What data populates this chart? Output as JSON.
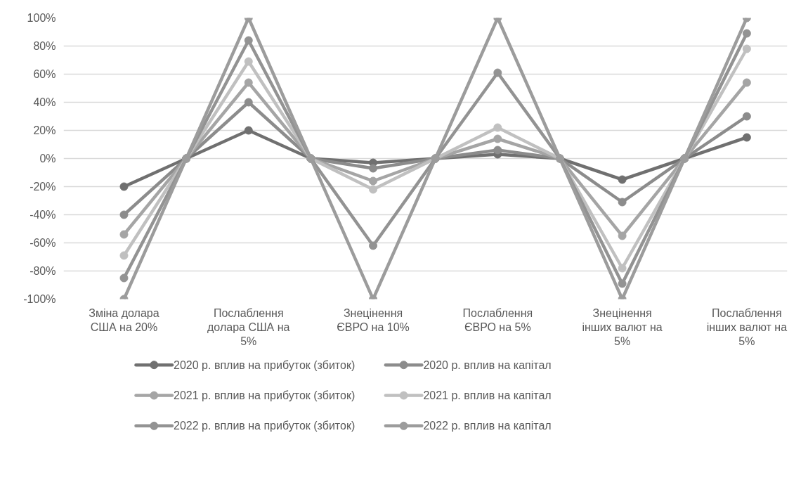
{
  "chart_data": {
    "type": "line",
    "categories": [
      "Зміна долара США на 20%",
      null,
      "Послаблення долара США на 5%",
      null,
      "Знецінення ЄВРО на 10%",
      null,
      "Послаблення ЄВРО на 5%",
      null,
      "Знецінення інших валют на 5%",
      null,
      "Послаблення інших валют на 5%"
    ],
    "series": [
      {
        "name": "2020 р. вплив на прибуток (збиток)",
        "color": "#707070",
        "values": [
          -20,
          0,
          20,
          0,
          -3,
          0,
          3,
          0,
          -15,
          0,
          15
        ]
      },
      {
        "name": "2020 р. вплив на капітал",
        "color": "#8c8c8c",
        "values": [
          -40,
          0,
          40,
          0,
          -7,
          0,
          6,
          0,
          -31,
          0,
          30
        ]
      },
      {
        "name": "2021 р. вплив на прибуток (збиток)",
        "color": "#a5a5a5",
        "values": [
          -54,
          0,
          54,
          0,
          -16,
          0,
          14,
          0,
          -55,
          0,
          54
        ]
      },
      {
        "name": "2021 р. вплив на капітал",
        "color": "#c0c0c0",
        "values": [
          -69,
          0,
          69,
          0,
          -22,
          0,
          22,
          0,
          -78,
          0,
          78
        ]
      },
      {
        "name": "2022 р. вплив на прибуток (збиток)",
        "color": "#939393",
        "values": [
          -85,
          0,
          84,
          0,
          -62,
          0,
          61,
          0,
          -89,
          0,
          89
        ]
      },
      {
        "name": "2022 р. вплив на капітал",
        "color": "#9c9c9c",
        "values": [
          -100,
          0,
          100,
          0,
          -100,
          0,
          100,
          0,
          -100,
          0,
          100
        ]
      }
    ],
    "ylim": [
      -100,
      100
    ],
    "yticks": [
      {
        "value": -100,
        "label": "-100%"
      },
      {
        "value": -80,
        "label": "-80%"
      },
      {
        "value": -60,
        "label": "-60%"
      },
      {
        "value": -40,
        "label": "-40%"
      },
      {
        "value": -20,
        "label": "-20%"
      },
      {
        "value": 0,
        "label": "0%"
      },
      {
        "value": 20,
        "label": "20%"
      },
      {
        "value": 40,
        "label": "40%"
      },
      {
        "value": 60,
        "label": "60%"
      },
      {
        "value": 80,
        "label": "80%"
      },
      {
        "value": 100,
        "label": "100%"
      }
    ],
    "grid": "y",
    "legend": "bottom",
    "marker": "circle",
    "line_style": "solid"
  }
}
